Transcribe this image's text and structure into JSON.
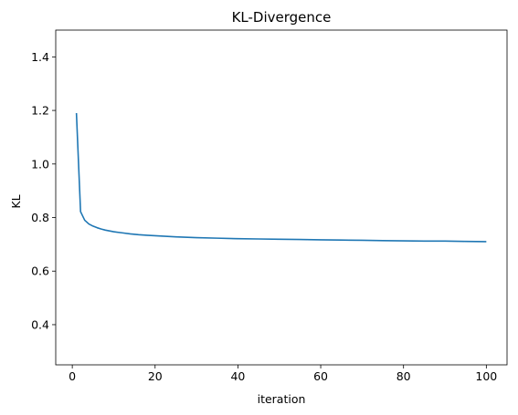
{
  "chart_data": {
    "type": "line",
    "title": "KL-Divergence",
    "xlabel": "iteration",
    "ylabel": "KL",
    "xlim": [
      -4.0,
      105.0
    ],
    "ylim": [
      0.25,
      1.5
    ],
    "grid": false,
    "x_ticks": [
      0,
      20,
      40,
      60,
      80,
      100
    ],
    "x_tick_labels": [
      "0",
      "20",
      "40",
      "60",
      "80",
      "100"
    ],
    "y_ticks": [
      0.4,
      0.6,
      0.8,
      1.0,
      1.2,
      1.4
    ],
    "y_tick_labels": [
      "0.4",
      "0.6",
      "0.8",
      "1.0",
      "1.2",
      "1.4"
    ],
    "series": [
      {
        "color": "#1f77b4",
        "x": [
          1,
          2,
          3,
          4,
          5,
          6,
          7,
          8,
          9,
          10,
          12,
          14,
          16,
          18,
          20,
          25,
          30,
          35,
          40,
          45,
          50,
          55,
          60,
          65,
          70,
          75,
          80,
          85,
          90,
          95,
          100
        ],
        "y": [
          1.19,
          0.822,
          0.79,
          0.776,
          0.768,
          0.762,
          0.757,
          0.753,
          0.75,
          0.747,
          0.743,
          0.739,
          0.736,
          0.734,
          0.732,
          0.728,
          0.725,
          0.723,
          0.721,
          0.72,
          0.719,
          0.718,
          0.717,
          0.716,
          0.715,
          0.714,
          0.713,
          0.712,
          0.712,
          0.711,
          0.71
        ]
      }
    ]
  }
}
